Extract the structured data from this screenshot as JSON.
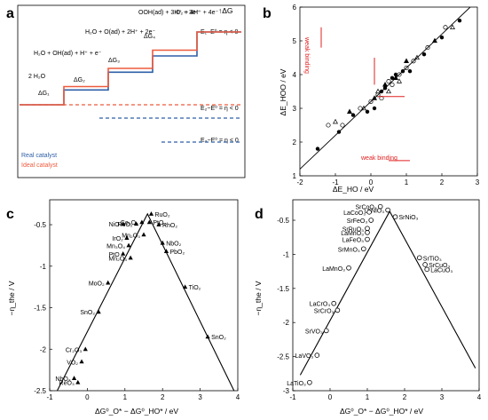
{
  "panels": {
    "a": {
      "label": "a",
      "dG_label": "↑ΔG",
      "states": [
        "2 H₂O",
        "H₂O + OH(ad) + H⁺ + e⁻",
        "H₂O + O(ad) + 2H⁺ + 2e⁻",
        "OOH(ad) + 3H⁺ + 3e⁻",
        "O₂ + 4H⁺ + 4e⁻"
      ],
      "steps": [
        "ΔG₁",
        "ΔG₂",
        "ΔG₃",
        "ΔG₄"
      ],
      "eq1": "E₁−E⁰ = η < 0",
      "eq2": "E₂−E⁰ = η < 0",
      "eq3": "E₃−E⁰ = η < 0",
      "legend_real": "Real catalyst",
      "legend_ideal": "Ideal catalyst",
      "colors": {
        "real": "#2e5fa8",
        "ideal": "#ee5a3c"
      }
    },
    "b": {
      "label": "b",
      "xlabel": "ΔE_HO / eV",
      "ylabel": "ΔE_HOO / eV",
      "annot_weak_x": "weak binding",
      "annot_weak_y": "weak binding"
    },
    "c": {
      "label": "c",
      "xlabel": "ΔG⁰_O* − ΔG⁰_HO* / eV",
      "ylabel": "−η_the / V"
    },
    "d": {
      "label": "d",
      "xlabel": "ΔG⁰_O* − ΔG⁰_HO* / eV",
      "ylabel": "−η_the / V"
    }
  },
  "chart_data": [
    {
      "panel": "a",
      "type": "line",
      "title": "",
      "xlabel": "",
      "ylabel": "ΔG",
      "series": [
        {
          "name": "Real catalyst",
          "values": [
            0,
            1.0,
            2.2,
            3.3,
            4.92
          ]
        },
        {
          "name": "Ideal catalyst",
          "values": [
            0,
            1.23,
            2.46,
            3.69,
            4.92
          ]
        }
      ],
      "categories": [
        "2 H₂O",
        "H₂O + OH(ad) + H⁺ + e⁻",
        "H₂O + O(ad) + 2H⁺ + 2e⁻",
        "OOH(ad) + 3H⁺ + 3e⁻",
        "O₂ + 4H⁺ + 4e⁻"
      ]
    },
    {
      "panel": "b",
      "type": "scatter",
      "xlabel": "ΔE_HO / eV",
      "ylabel": "ΔE_HOO / eV",
      "xlim": [
        -2,
        3
      ],
      "ylim": [
        1,
        6
      ],
      "xticks": [
        -2,
        -1,
        0,
        1,
        2,
        3
      ],
      "yticks": [
        1,
        2,
        3,
        4,
        5,
        6
      ],
      "fit_line": {
        "slope": 1,
        "intercept": 3.2
      },
      "x": [
        -1.5,
        -1.2,
        -1.0,
        -0.9,
        -0.8,
        -0.6,
        -0.5,
        -0.3,
        -0.2,
        -0.1,
        0.0,
        0.1,
        0.1,
        0.2,
        0.2,
        0.3,
        0.3,
        0.4,
        0.4,
        0.5,
        0.5,
        0.6,
        0.6,
        0.7,
        0.7,
        0.8,
        0.8,
        0.9,
        1.0,
        1.0,
        1.1,
        1.2,
        1.3,
        1.5,
        1.6,
        1.8,
        2.0,
        2.1,
        2.3,
        2.5
      ],
      "y": [
        1.8,
        2.5,
        2.6,
        2.3,
        2.5,
        2.9,
        2.8,
        3.0,
        3.0,
        2.9,
        3.2,
        3.3,
        3.0,
        3.4,
        3.5,
        3.5,
        3.3,
        3.7,
        3.6,
        3.8,
        3.5,
        3.9,
        3.7,
        3.9,
        4.0,
        4.0,
        3.8,
        4.1,
        4.2,
        4.4,
        4.1,
        4.4,
        4.5,
        4.6,
        4.8,
        5.0,
        5.1,
        5.4,
        5.4,
        5.6
      ]
    },
    {
      "panel": "c",
      "type": "scatter",
      "xlabel": "ΔG⁰_O* − ΔG⁰_HO* / eV",
      "ylabel": "−η_the / V",
      "xlim": [
        -1,
        4
      ],
      "ylim": [
        -2.5,
        -0.2
      ],
      "xticks": [
        -1,
        0,
        1,
        2,
        3,
        4
      ],
      "yticks": [
        -2.5,
        -2.0,
        -1.5,
        -1.0,
        -0.5
      ],
      "volcano": {
        "left_intercept": -1.23,
        "apex_x": 1.6
      },
      "points": [
        {
          "label": "Co₃O₄",
          "x": 1.45,
          "y": -0.47
        },
        {
          "label": "RuO₂",
          "x": 1.7,
          "y": -0.37
        },
        {
          "label": "NiO",
          "x": 0.95,
          "y": -0.49
        },
        {
          "label": "RuO₂",
          "x": 1.3,
          "y": -0.49
        },
        {
          "label": "PtO₂",
          "x": 1.65,
          "y": -0.47
        },
        {
          "label": "RhO₂",
          "x": 1.9,
          "y": -0.5
        },
        {
          "label": "Mn₂O₃",
          "x": 1.5,
          "y": -0.62
        },
        {
          "label": "IrO₂",
          "x": 1.05,
          "y": -0.66
        },
        {
          "label": "NbO₂",
          "x": 2.0,
          "y": -0.72
        },
        {
          "label": "Mn₃O₄",
          "x": 1.1,
          "y": -0.75
        },
        {
          "label": "PbO₂",
          "x": 2.1,
          "y": -0.82
        },
        {
          "label": "PtO",
          "x": 0.95,
          "y": -0.85
        },
        {
          "label": "Mn₂O₃",
          "x": 1.15,
          "y": -0.9
        },
        {
          "label": "MoO₂",
          "x": 0.55,
          "y": -1.2
        },
        {
          "label": "TiO₂",
          "x": 2.6,
          "y": -1.25
        },
        {
          "label": "SnO₂",
          "x": 0.3,
          "y": -1.55
        },
        {
          "label": "SnO₂",
          "x": 3.2,
          "y": -1.85
        },
        {
          "label": "Cr₂O₃",
          "x": -0.05,
          "y": -2.0
        },
        {
          "label": "VO₂",
          "x": -0.15,
          "y": -2.15
        },
        {
          "label": "NbO₂",
          "x": -0.35,
          "y": -2.35
        },
        {
          "label": "ReO₃",
          "x": -0.25,
          "y": -2.4
        }
      ]
    },
    {
      "panel": "d",
      "type": "scatter",
      "xlabel": "ΔG⁰_O* − ΔG⁰_HO* / eV",
      "ylabel": "−η_the / V",
      "xlim": [
        -1,
        4
      ],
      "ylim": [
        -3.0,
        -0.2
      ],
      "xticks": [
        -1,
        0,
        1,
        2,
        3,
        4
      ],
      "yticks": [
        -3.0,
        -2.5,
        -2.0,
        -1.5,
        -1.0,
        -0.5
      ],
      "volcano": {
        "left_intercept": -1.23,
        "apex_x": 1.6
      },
      "points": [
        {
          "label": "SrCoO₃",
          "x": 1.35,
          "y": -0.3
        },
        {
          "label": "LaNiO₃",
          "x": 1.55,
          "y": -0.35
        },
        {
          "label": "LaCoO₃",
          "x": 1.05,
          "y": -0.38
        },
        {
          "label": "SrNiO₃",
          "x": 1.75,
          "y": -0.45
        },
        {
          "label": "SrFeO₃",
          "x": 1.1,
          "y": -0.5
        },
        {
          "label": "SrRuO₃",
          "x": 1.0,
          "y": -0.62
        },
        {
          "label": "LaMnO₃",
          "x": 1.0,
          "y": -0.68
        },
        {
          "label": "LaFeO₃",
          "x": 1.0,
          "y": -0.78
        },
        {
          "label": "SrMnO₃",
          "x": 0.9,
          "y": -0.92
        },
        {
          "label": "SrTiO₃",
          "x": 2.4,
          "y": -1.05
        },
        {
          "label": "SrCuO₃",
          "x": 2.55,
          "y": -1.15
        },
        {
          "label": "LaCuO₃",
          "x": 2.6,
          "y": -1.22
        },
        {
          "label": "LaMnO₃",
          "x": 0.5,
          "y": -1.2
        },
        {
          "label": "LaCrO₃",
          "x": 0.1,
          "y": -1.72
        },
        {
          "label": "SrCrO₃",
          "x": 0.2,
          "y": -1.82
        },
        {
          "label": "SrVO₃",
          "x": -0.1,
          "y": -2.12
        },
        {
          "label": "LaVO₃",
          "x": -0.35,
          "y": -2.48
        },
        {
          "label": "LaTiO₃",
          "x": -0.55,
          "y": -2.88
        }
      ]
    }
  ]
}
